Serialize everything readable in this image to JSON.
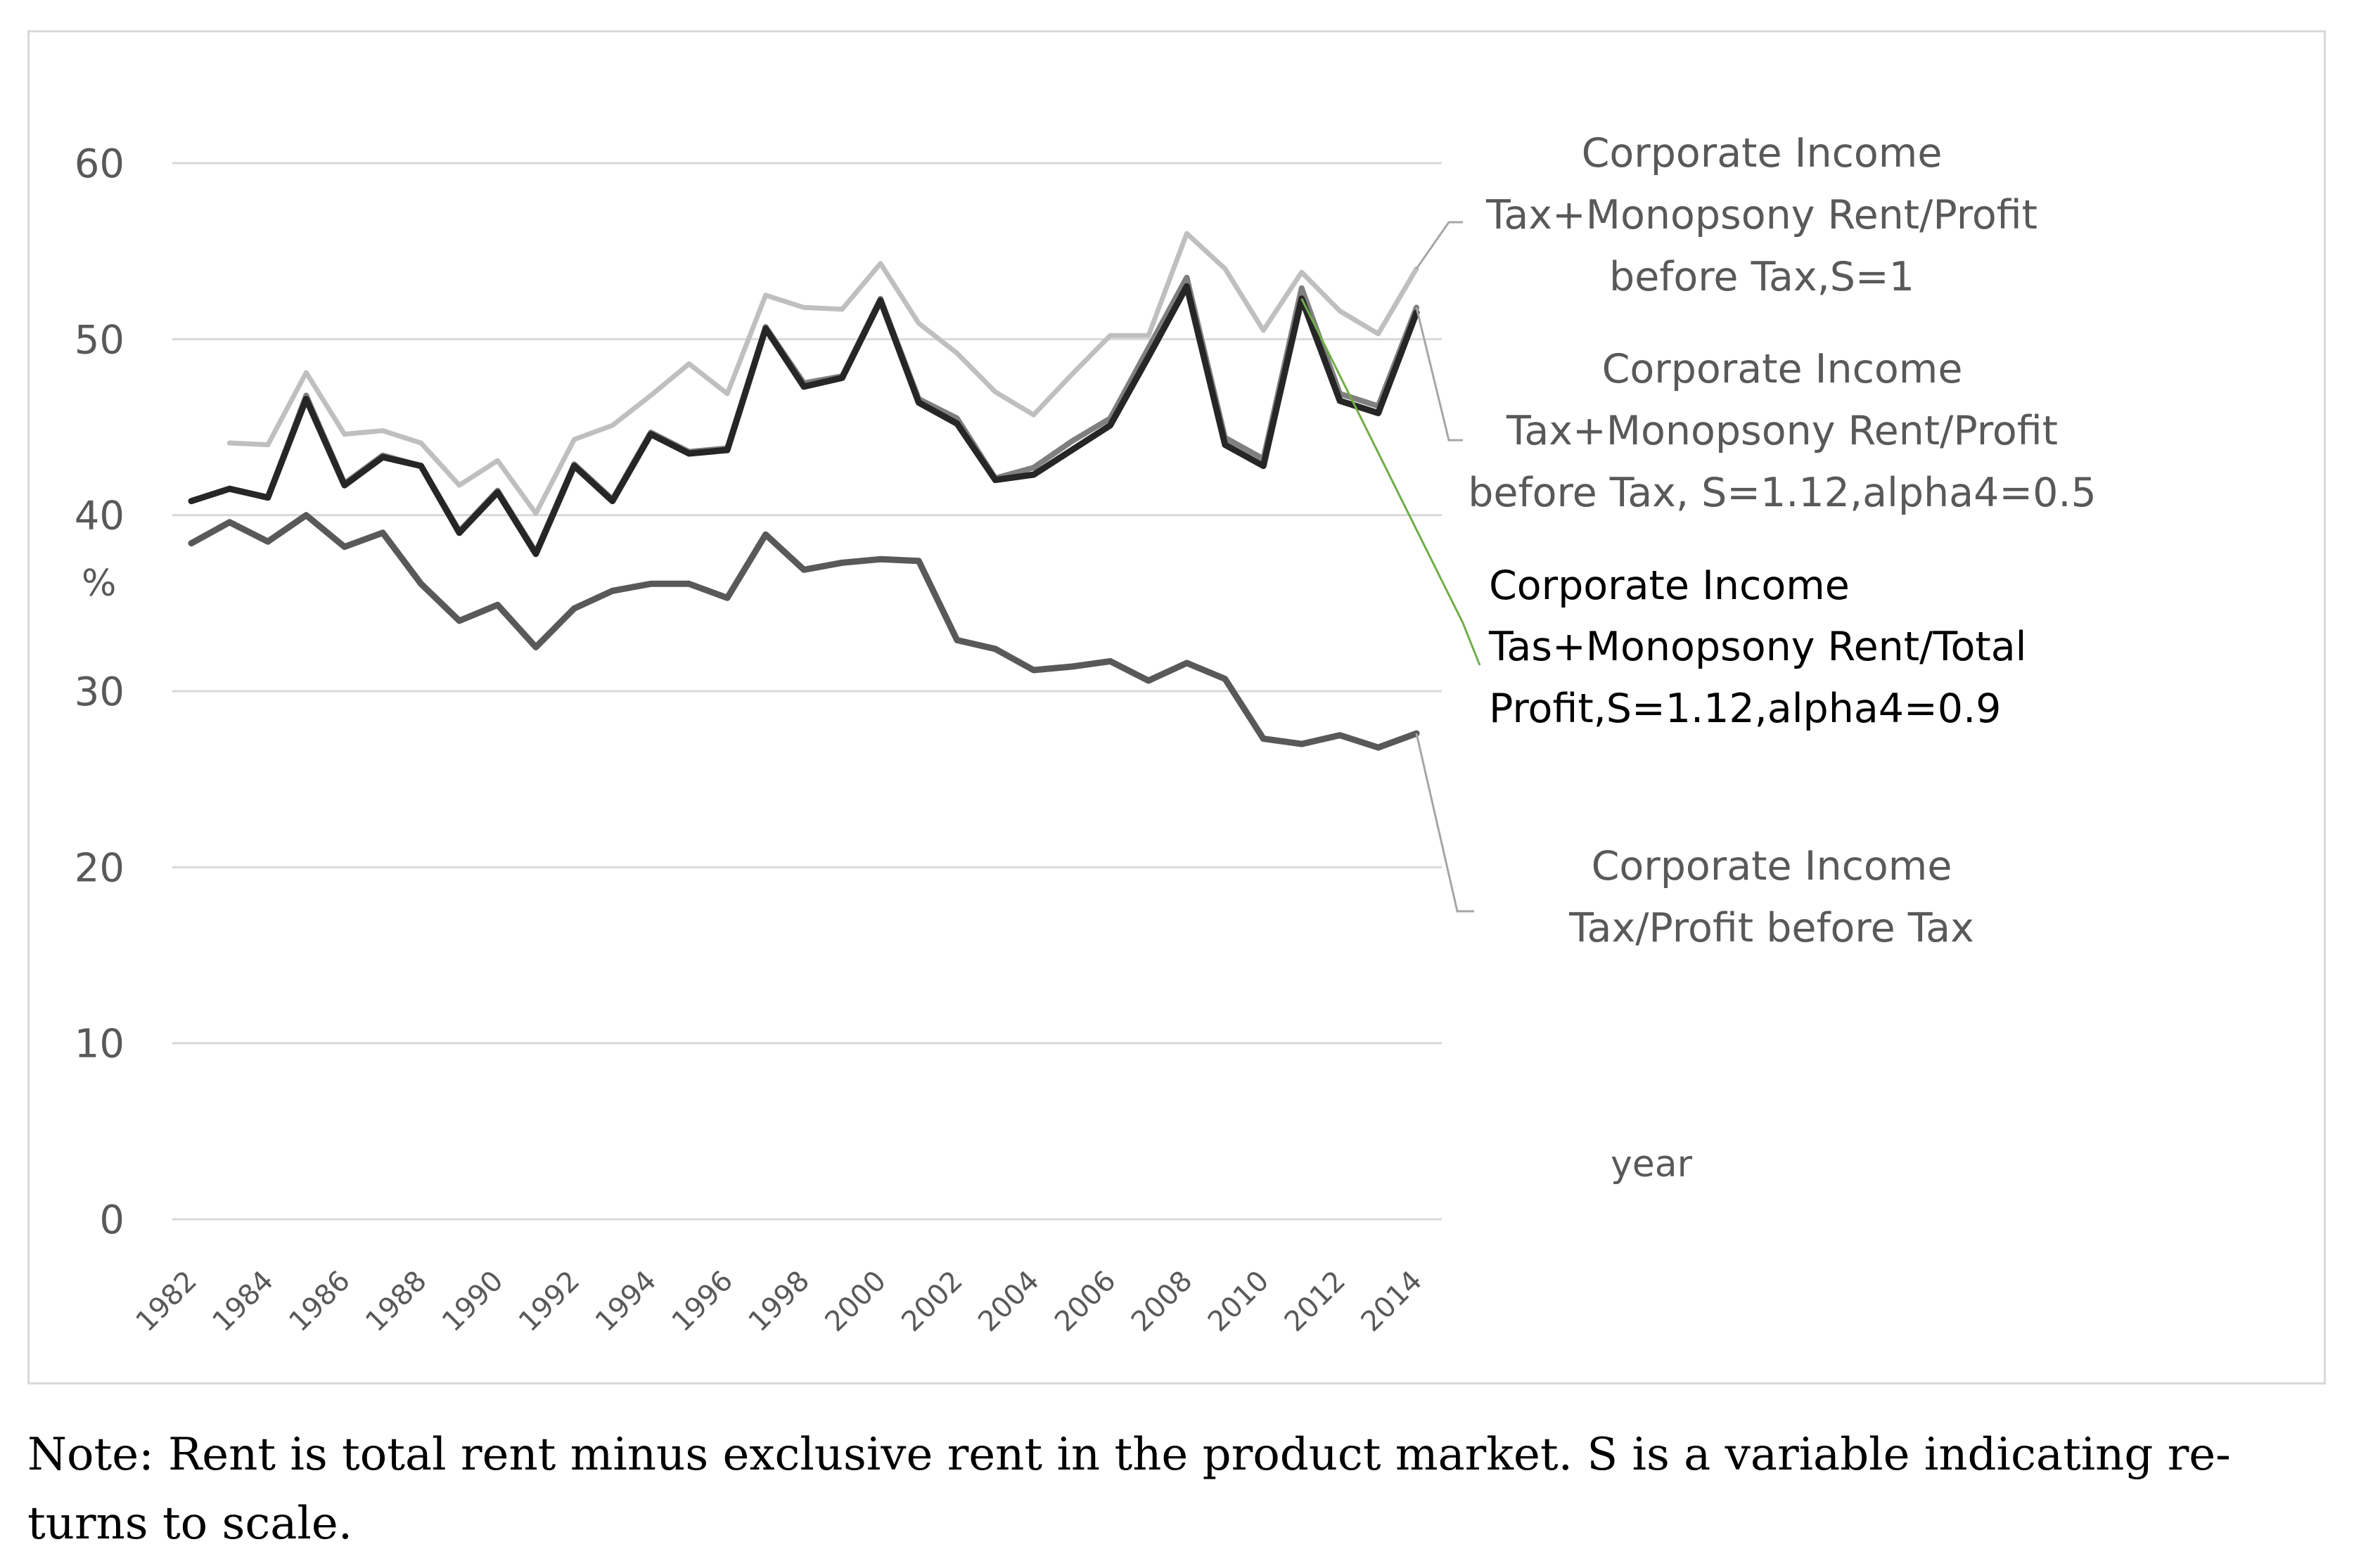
{
  "chart_data": {
    "type": "line",
    "xlabel": "year",
    "ylabel": "%",
    "ylim": [
      0,
      60
    ],
    "yticks": [
      0,
      10,
      20,
      30,
      40,
      50,
      60
    ],
    "x": [
      1982,
      1983,
      1984,
      1985,
      1986,
      1987,
      1988,
      1989,
      1990,
      1991,
      1992,
      1993,
      1994,
      1995,
      1996,
      1997,
      1998,
      1999,
      2000,
      2001,
      2002,
      2003,
      2004,
      2005,
      2006,
      2007,
      2008,
      2009,
      2010,
      2011,
      2012,
      2013,
      2014
    ],
    "xtick_labels": [
      "1982",
      "1984",
      "1986",
      "1988",
      "1990",
      "1992",
      "1994",
      "1996",
      "1998",
      "2000",
      "2002",
      "2004",
      "2006",
      "2008",
      "2010",
      "2012",
      "2014"
    ],
    "series": [
      {
        "name": "Corporate Income Tax+Monopsony Rent/Profit before Tax,S=1",
        "legend_lines": [
          "Corporate Income",
          "Tax+Monopsony  Rent/Profit",
          "before Tax,S=1"
        ],
        "color": "#bfbfbf",
        "values": [
          null,
          44.1,
          44.0,
          48.1,
          44.6,
          44.8,
          44.1,
          41.7,
          43.1,
          40.1,
          44.3,
          45.1,
          46.8,
          48.6,
          46.9,
          52.5,
          51.8,
          51.7,
          54.3,
          50.9,
          49.2,
          47.0,
          45.7,
          48.0,
          50.2,
          50.2,
          56.0,
          54.0,
          50.5,
          53.8,
          51.6,
          50.3,
          54.0
        ]
      },
      {
        "name": "Corporate Income Tax+Monopsony Rent/Profit before Tax, S=1.12,alpha4=0.5",
        "legend_lines": [
          "Corporate Income",
          "Tax+Monopsony  Rent/Profit",
          "before Tax, S=1.12,alpha4=0.5"
        ],
        "color": "#7f7f7f",
        "values": [
          40.8,
          41.5,
          41.0,
          46.8,
          41.8,
          43.4,
          42.8,
          39.1,
          41.4,
          37.9,
          42.9,
          40.9,
          44.7,
          43.6,
          43.8,
          50.7,
          47.5,
          47.9,
          52.3,
          46.6,
          45.5,
          42.1,
          42.7,
          44.2,
          45.5,
          49.5,
          53.5,
          44.4,
          43.2,
          52.9,
          46.9,
          46.2,
          51.8
        ]
      },
      {
        "name": "Corporate Income Tas+Monopsony Rent/Total Profit,S=1.12,alpha4=0.9",
        "legend_lines": [
          "Corporate Income",
          "Tas+Monopsony  Rent/Total",
          "Profit,S=1.12,alpha4=0.9"
        ],
        "color": "#262626",
        "values": [
          40.8,
          41.5,
          41.0,
          46.6,
          41.7,
          43.3,
          42.8,
          39.0,
          41.3,
          37.8,
          42.8,
          40.8,
          44.6,
          43.5,
          43.7,
          50.6,
          47.3,
          47.8,
          52.2,
          46.4,
          45.2,
          42.0,
          42.3,
          43.7,
          45.1,
          49.0,
          53.0,
          44.0,
          42.8,
          52.3,
          46.5,
          45.8,
          51.5
        ]
      },
      {
        "name": "Corporate Income Tax/Profit before Tax",
        "legend_lines": [
          "Corporate Income",
          "Tax/Profit before Tax"
        ],
        "color": "#595959",
        "values": [
          38.4,
          39.6,
          38.5,
          40.0,
          38.2,
          39.0,
          36.1,
          34.0,
          34.9,
          32.5,
          34.7,
          35.7,
          36.1,
          36.1,
          35.3,
          38.9,
          36.9,
          37.3,
          37.5,
          37.4,
          32.9,
          32.4,
          31.2,
          31.4,
          31.7,
          30.6,
          31.6,
          30.7,
          27.3,
          27.0,
          27.5,
          26.8,
          27.6
        ]
      }
    ]
  },
  "note": {
    "line1": "Note: Rent is total rent minus exclusive rent in the product market. S is a variable indicating re-",
    "line2": "turns to scale."
  }
}
